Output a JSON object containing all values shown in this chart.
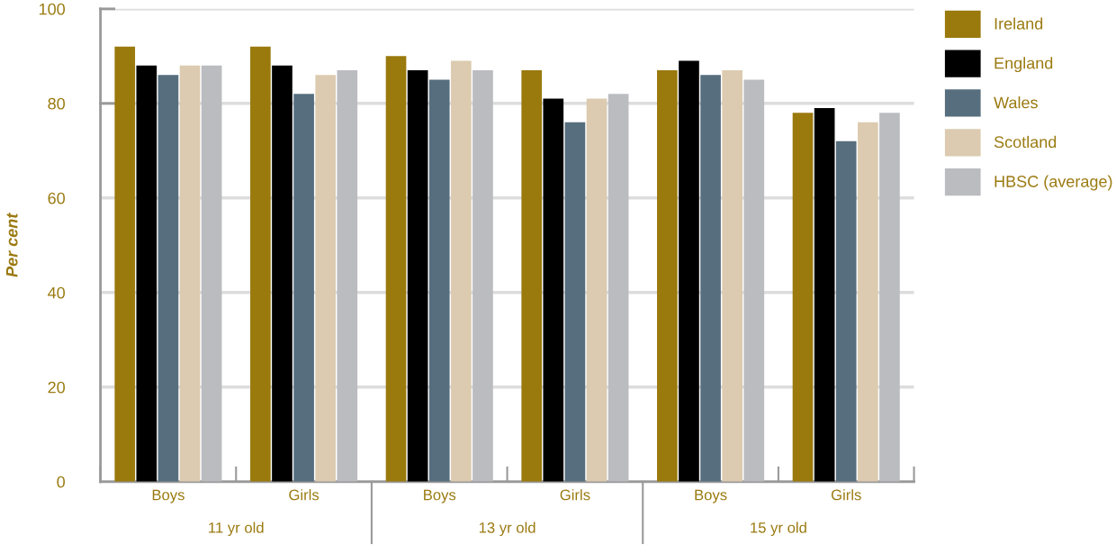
{
  "chart_data": {
    "type": "bar",
    "ylabel": "Per cent",
    "categories": [
      "Boys",
      "Girls",
      "Boys",
      "Girls",
      "Boys",
      "Girls"
    ],
    "annotations": [
      "11 yr old",
      "13 yr old",
      "15 yr old"
    ],
    "series": [
      {
        "name": "Ireland",
        "color": "#9a790d",
        "values": [
          92,
          92,
          90,
          87,
          87,
          78
        ]
      },
      {
        "name": "England",
        "color": "#000000",
        "values": [
          88,
          88,
          87,
          81,
          89,
          79
        ]
      },
      {
        "name": "Wales",
        "color": "#566e7e",
        "values": [
          86,
          82,
          85,
          76,
          86,
          72
        ]
      },
      {
        "name": "Scotland",
        "color": "#dccbb0",
        "values": [
          88,
          86,
          89,
          81,
          87,
          76
        ]
      },
      {
        "name": "HBSC (average)",
        "color": "#bbbcc0",
        "values": [
          88,
          87,
          87,
          82,
          85,
          78
        ]
      }
    ],
    "ylim": [
      0,
      100
    ],
    "yticks": [
      0,
      20,
      40,
      60,
      80,
      100
    ],
    "grid": "y",
    "legend": "top right"
  }
}
